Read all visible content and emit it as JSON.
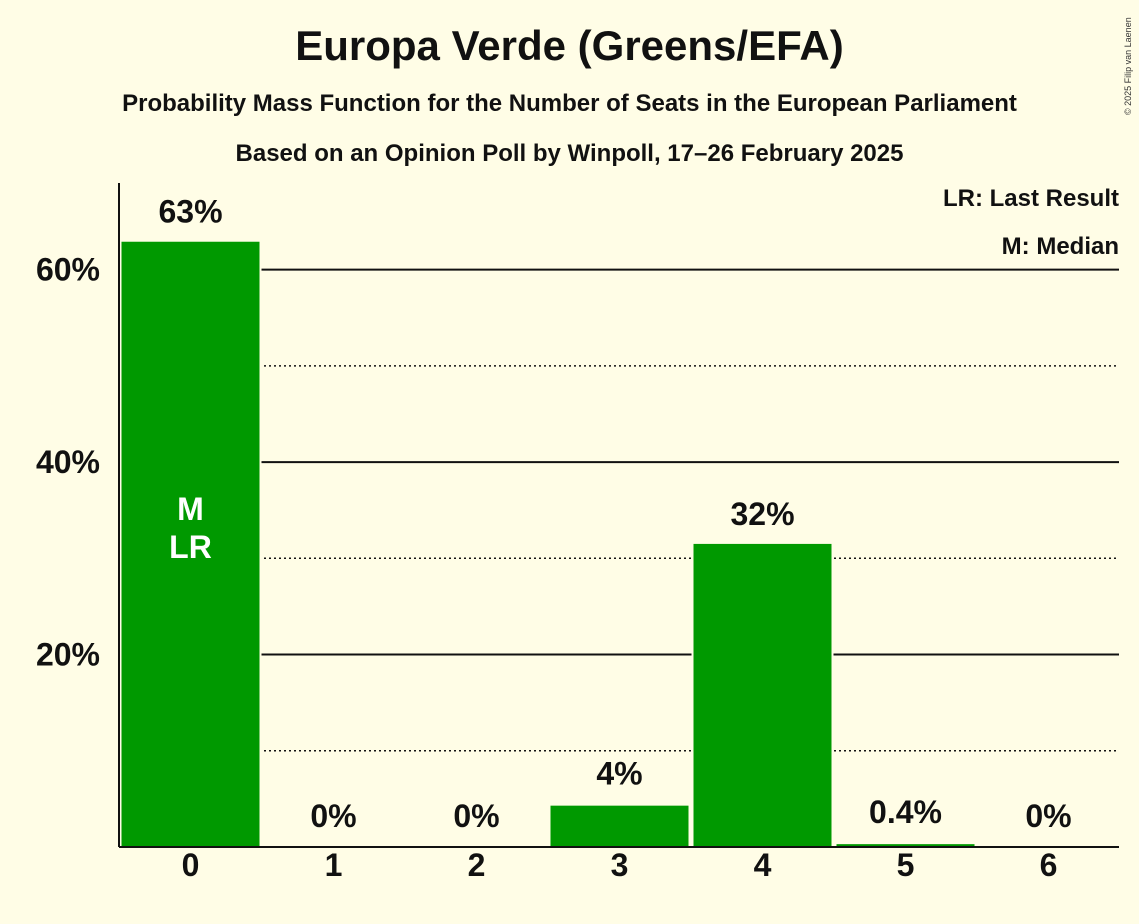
{
  "title": "Europa Verde (Greens/EFA)",
  "subtitle": "Probability Mass Function for the Number of Seats in the European Parliament",
  "subtitle2": "Based on an Opinion Poll by Winpoll, 17–26 February 2025",
  "copyright": "© 2025 Filip van Laenen",
  "legend": {
    "last_result": "LR: Last Result",
    "median": "M: Median"
  },
  "colors": {
    "bar": "#009900",
    "background": "#fffde6",
    "text": "#111111"
  },
  "chart_data": {
    "type": "bar",
    "title": "Europa Verde (Greens/EFA)",
    "xlabel": "",
    "ylabel": "",
    "categories": [
      "0",
      "1",
      "2",
      "3",
      "4",
      "5",
      "6"
    ],
    "values": [
      63,
      0,
      0,
      4.4,
      31.6,
      0.4,
      0
    ],
    "value_labels": [
      "63%",
      "0%",
      "0%",
      "4%",
      "32%",
      "0.4%",
      "0%"
    ],
    "y_ticks": [
      20,
      40,
      60
    ],
    "y_tick_labels": [
      "20%",
      "40%",
      "60%"
    ],
    "y_minor_gridlines": [
      10,
      30,
      50
    ],
    "ylim": [
      0,
      69
    ],
    "bar_annotations": [
      {
        "category": "0",
        "lines": [
          "M",
          "LR"
        ]
      }
    ],
    "legend_placement": "top-right"
  }
}
